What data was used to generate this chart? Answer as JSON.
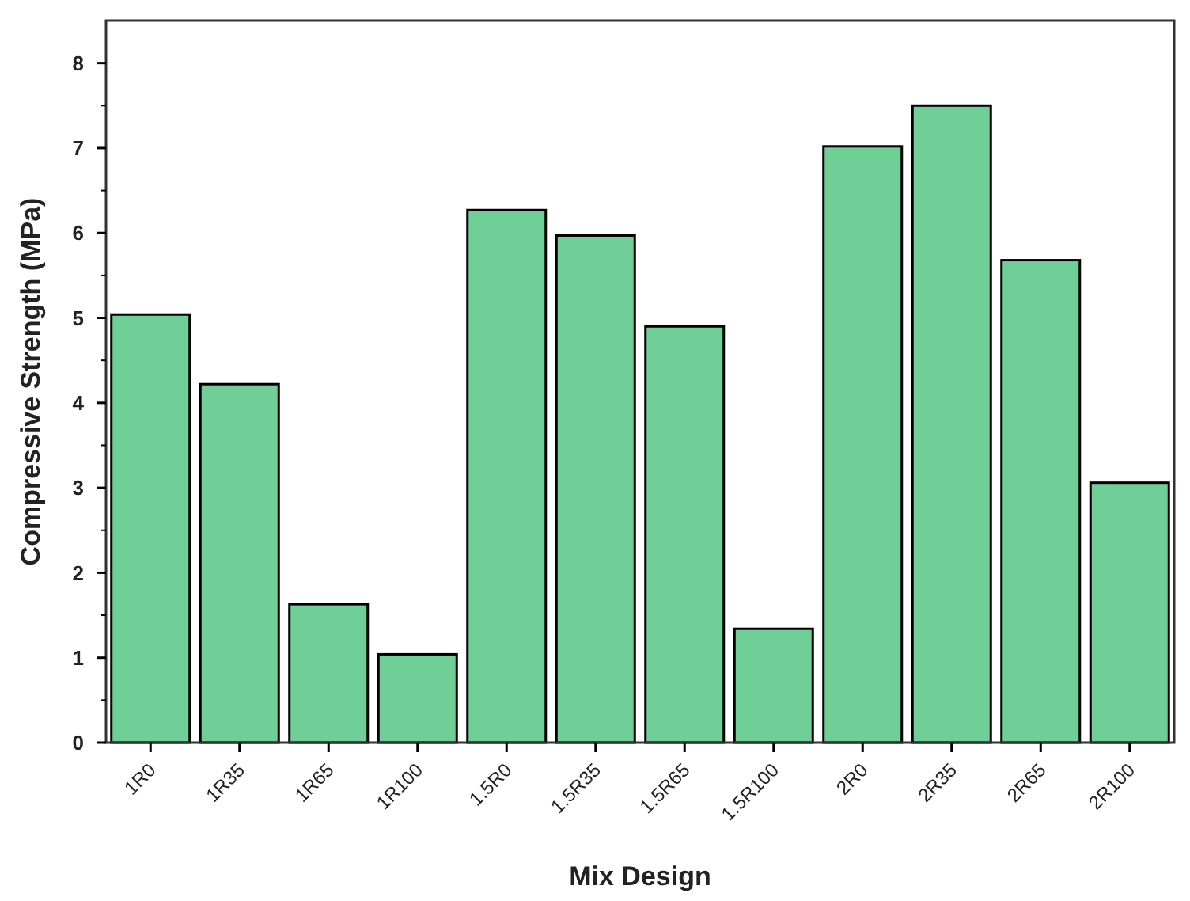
{
  "chart_data": {
    "type": "bar",
    "xlabel": "Mix Design",
    "ylabel": "Compressive Strength (MPa)",
    "categories": [
      "1R0",
      "1R35",
      "1R65",
      "1R100",
      "1.5R0",
      "1.5R35",
      "1.5R65",
      "1.5R100",
      "2R0",
      "2R35",
      "2R65",
      "2R100"
    ],
    "values": [
      5.04,
      4.22,
      1.63,
      1.04,
      6.27,
      5.97,
      4.9,
      1.34,
      7.02,
      7.5,
      5.68,
      3.06
    ],
    "color": "#6fcf97",
    "ylim": [
      0,
      8.5
    ],
    "yticks": [
      0,
      1,
      2,
      3,
      4,
      5,
      6,
      7,
      8
    ]
  }
}
